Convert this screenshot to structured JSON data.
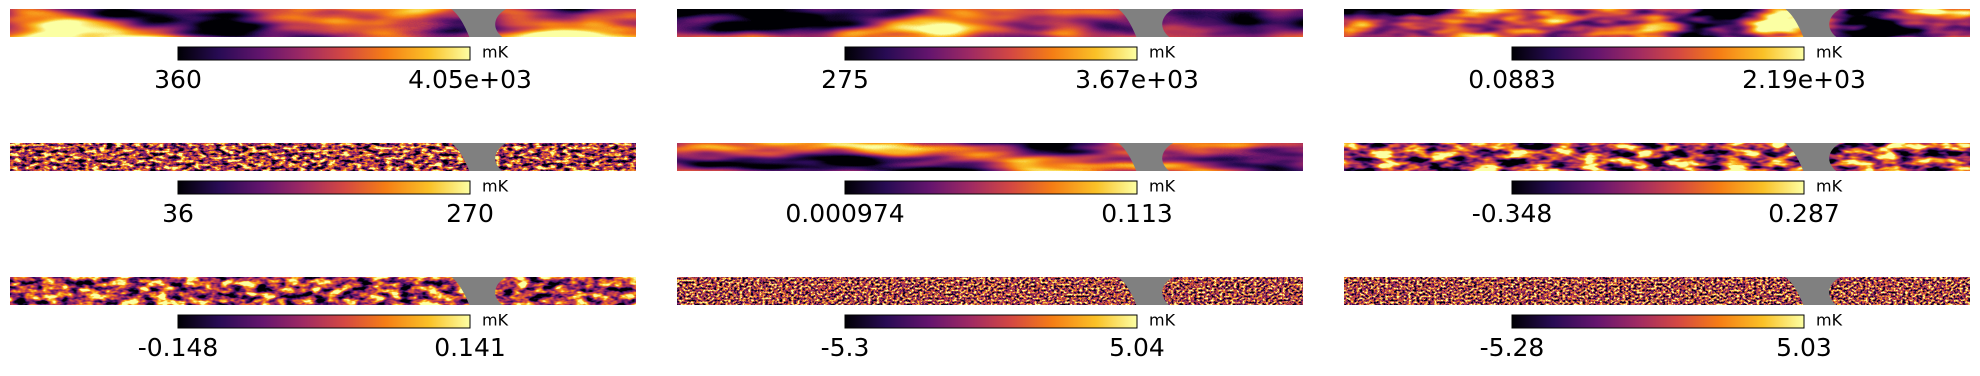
{
  "panels": [
    {
      "min": "360",
      "max": "4.05e+03",
      "unit": "mK"
    },
    {
      "min": "275",
      "max": "3.67e+03",
      "unit": "mK"
    },
    {
      "min": "0.0883",
      "max": "2.19e+03",
      "unit": "mK"
    },
    {
      "min": "36",
      "max": "270",
      "unit": "mK"
    },
    {
      "min": "0.000974",
      "max": "0.113",
      "unit": "mK"
    },
    {
      "min": "-0.348",
      "max": "0.287",
      "unit": "mK"
    },
    {
      "min": "-0.148",
      "max": "0.141",
      "unit": "mK"
    },
    {
      "min": "-5.3",
      "max": "5.04",
      "unit": "mK"
    },
    {
      "min": "-5.28",
      "max": "5.03",
      "unit": "mK"
    }
  ]
}
